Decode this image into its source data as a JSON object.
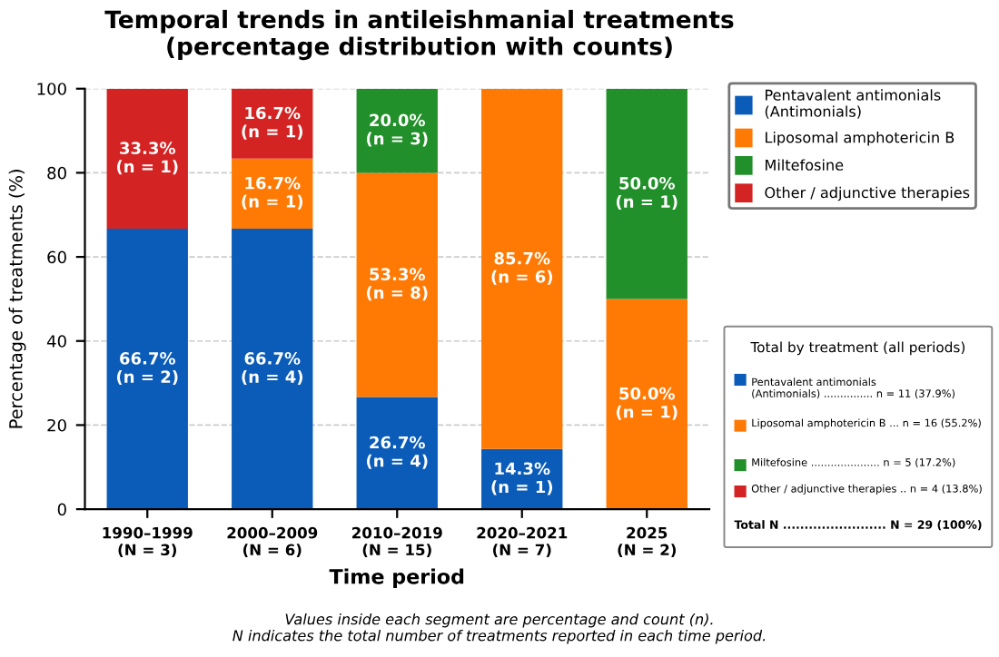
{
  "chart_data": {
    "type": "bar",
    "stacked": true,
    "title": "Temporal trends in antileishmanial treatments\n(percentage distribution with counts)",
    "xlabel": "Time period",
    "ylabel": "Percentage of treatments (%)",
    "categories": [
      "1990–1999\n(N = 3)",
      "2000–2009\n(N = 6)",
      "2010–2019\n(N = 15)",
      "2020–2021\n(N = 7)",
      "2025\n(N = 2)"
    ],
    "series": [
      {
        "name": "Pentavalent antimonials\n(Antimonials)",
        "color": "#0a5cb8",
        "values": [
          66.7,
          66.7,
          26.7,
          14.3,
          null
        ],
        "value_labels": [
          "66.7%\n(n = 2)",
          "66.7%\n(n = 4)",
          "26.7%\n(n = 4)",
          "14.3%\n(n = 1)",
          null
        ]
      },
      {
        "name": "Liposomal amphotericin B",
        "color": "#ff7a05",
        "values": [
          null,
          16.7,
          53.3,
          85.7,
          50.0
        ],
        "value_labels": [
          null,
          "16.7%\n(n = 1)",
          "53.3%\n(n = 8)",
          "85.7%\n(n = 6)",
          "50.0%\n(n = 1)"
        ]
      },
      {
        "name": "Miltefosine",
        "color": "#22902a",
        "values": [
          null,
          null,
          20.0,
          null,
          50.0
        ],
        "value_labels": [
          null,
          null,
          "20.0%\n(n = 3)",
          null,
          "50.0%\n(n = 1)"
        ]
      },
      {
        "name": "Other / adjunctive therapies",
        "color": "#d42323",
        "values": [
          33.3,
          16.7,
          null,
          null,
          null
        ],
        "value_labels": [
          "33.3%\n(n = 1)",
          "16.7%\n(n = 1)",
          null,
          null,
          null
        ]
      }
    ],
    "ylim": [
      0,
      100
    ],
    "yticks": [
      0,
      20,
      40,
      60,
      80,
      100
    ],
    "grid": "y",
    "legend": "right",
    "annotations": [
      "Total by treatment (all periods)",
      "Pentavalent antimonials\n(Antimonials) ............... n = 11 (37.9%)",
      "Liposomal amphotericin B ... n = 16 (55.2%)",
      "Miltefosine ..................... n = 5 (17.2%)",
      "Other / adjunctive therapies .. n = 4 (13.8%)",
      "Total N ........................ N = 29 (100%)",
      "Values inside each segment are percentage and count (n).\nN indicates the total number of treatments reported in each time period."
    ]
  }
}
